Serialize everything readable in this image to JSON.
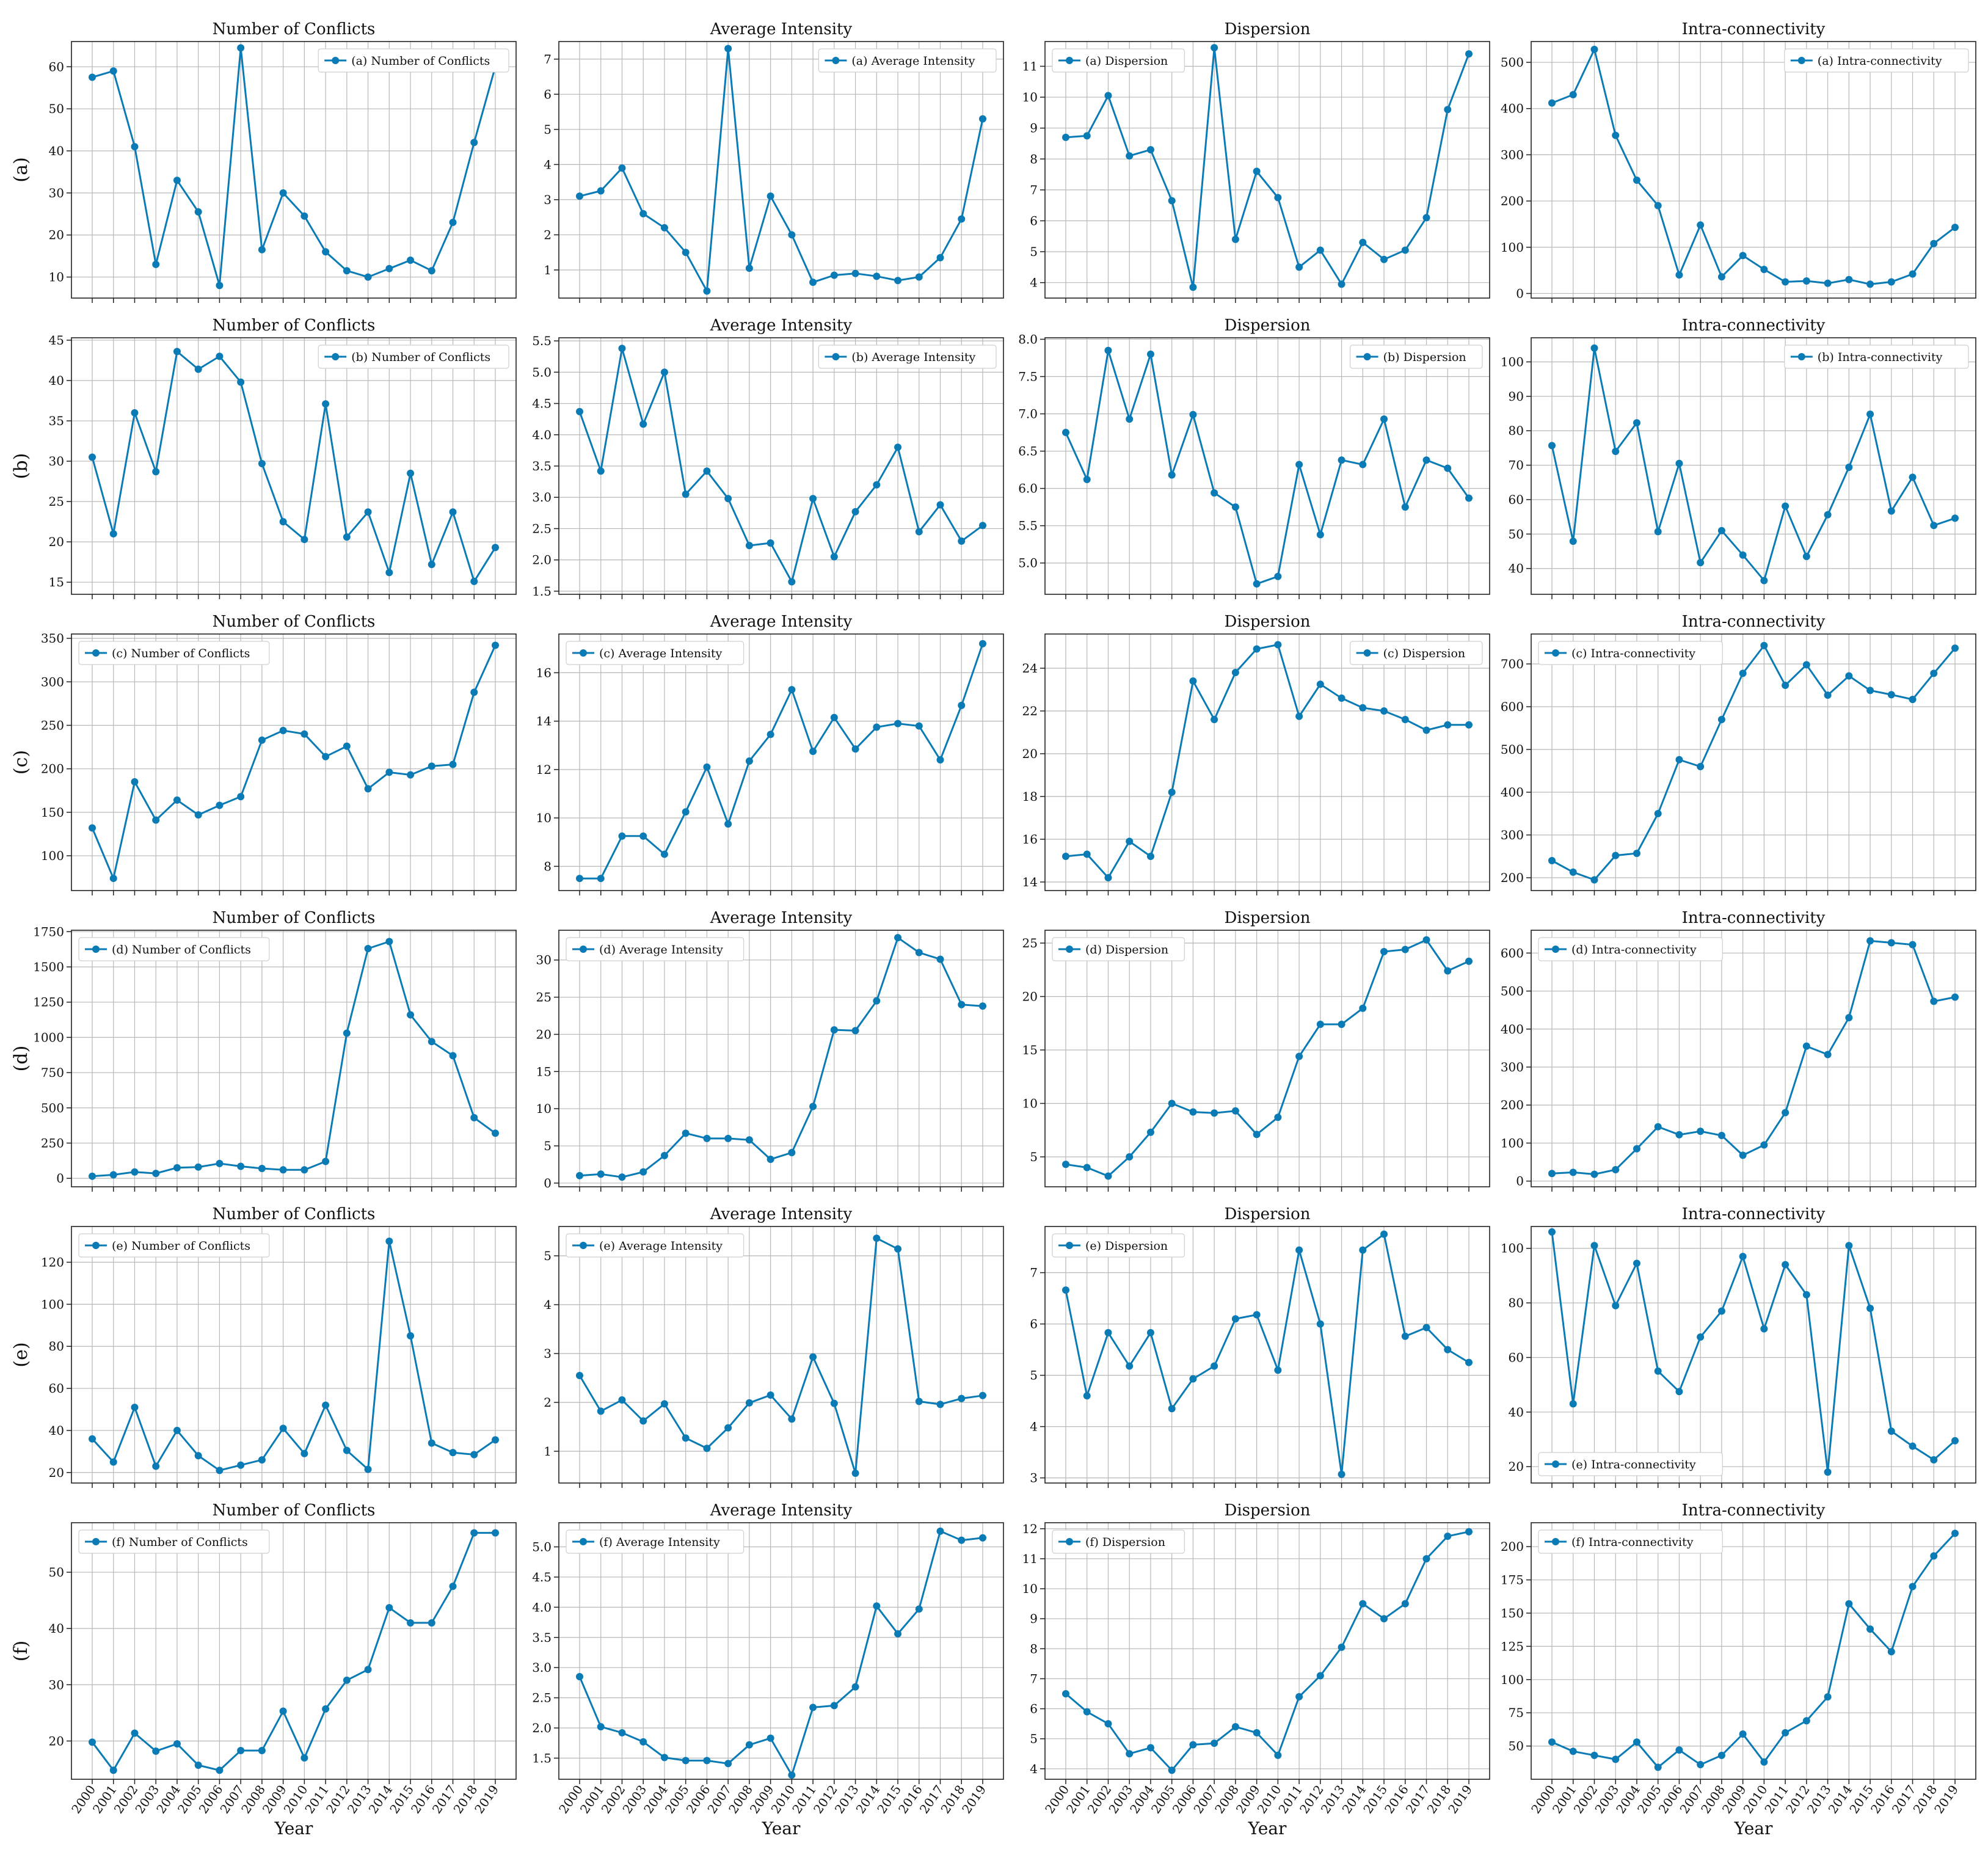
{
  "figure": {
    "line_color": "#0a7bb5",
    "x_label": "Year",
    "years": [
      "2000",
      "2001",
      "2002",
      "2003",
      "2004",
      "2005",
      "2006",
      "2007",
      "2008",
      "2009",
      "2010",
      "2011",
      "2012",
      "2013",
      "2014",
      "2015",
      "2016",
      "2017",
      "2018",
      "2019"
    ],
    "column_titles": [
      "Number of Conflicts",
      "Average Intensity",
      "Dispersion",
      "Intra-connectivity"
    ],
    "row_labels": [
      "(a)",
      "(b)",
      "(c)",
      "(d)",
      "(e)",
      "(f)"
    ]
  },
  "chart_data": [
    {
      "type": "line",
      "title": "Number of Conflicts",
      "row_label": "(a)",
      "legend_loc": "upper right",
      "ylim": [
        5,
        66
      ],
      "yticks": [
        10,
        20,
        30,
        40,
        50,
        60
      ],
      "series": [
        {
          "name": "(a) Number of Conflicts",
          "values": [
            57.5,
            59,
            41,
            13,
            33,
            25.5,
            8,
            64.5,
            16.5,
            30,
            24.5,
            16,
            11.5,
            10,
            12,
            14,
            11.5,
            23,
            42,
            60
          ]
        }
      ]
    },
    {
      "type": "line",
      "title": "Average Intensity",
      "row_label": "(a)",
      "legend_loc": "upper right",
      "ylim": [
        0.2,
        7.5
      ],
      "yticks": [
        1,
        2,
        3,
        4,
        5,
        6,
        7
      ],
      "series": [
        {
          "name": "(a) Average Intensity",
          "values": [
            3.1,
            3.25,
            3.9,
            2.6,
            2.2,
            1.5,
            0.4,
            7.3,
            1.05,
            3.1,
            2.0,
            0.65,
            0.85,
            0.9,
            0.82,
            0.7,
            0.8,
            1.35,
            2.45,
            5.3
          ]
        }
      ]
    },
    {
      "type": "line",
      "title": "Dispersion",
      "row_label": "(a)",
      "legend_loc": "upper left",
      "ylim": [
        3.5,
        11.8
      ],
      "yticks": [
        4,
        5,
        6,
        7,
        8,
        9,
        10,
        11
      ],
      "series": [
        {
          "name": "(a) Dispersion",
          "values": [
            8.7,
            8.75,
            10.05,
            8.1,
            8.3,
            6.65,
            3.85,
            11.6,
            5.4,
            7.6,
            6.75,
            4.5,
            5.05,
            3.95,
            5.3,
            4.75,
            5.05,
            6.1,
            9.6,
            11.4
          ]
        }
      ]
    },
    {
      "type": "line",
      "title": "Intra-connectivity",
      "row_label": "(a)",
      "legend_loc": "upper right",
      "ylim": [
        -10,
        545
      ],
      "yticks": [
        0,
        100,
        200,
        300,
        400,
        500
      ],
      "series": [
        {
          "name": "(a) Intra-connectivity",
          "values": [
            412,
            430,
            528,
            342,
            245,
            190,
            40,
            148,
            36,
            82,
            52,
            25,
            27,
            22,
            30,
            20,
            25,
            42,
            108,
            143
          ]
        }
      ]
    },
    {
      "type": "line",
      "title": "Number of Conflicts",
      "row_label": "(b)",
      "legend_loc": "upper right",
      "ylim": [
        13.5,
        45.3
      ],
      "yticks": [
        15,
        20,
        25,
        30,
        35,
        40,
        45
      ],
      "series": [
        {
          "name": "(b) Number of Conflicts",
          "values": [
            30.5,
            21,
            36,
            28.7,
            43.6,
            41.4,
            43,
            39.8,
            29.7,
            22.5,
            20.3,
            37.1,
            20.6,
            23.7,
            16.2,
            28.5,
            17.2,
            23.7,
            15.1,
            19.3
          ]
        }
      ]
    },
    {
      "type": "line",
      "title": "Average Intensity",
      "row_label": "(b)",
      "legend_loc": "upper right",
      "ylim": [
        1.45,
        5.55
      ],
      "yticks": [
        1.5,
        2.0,
        2.5,
        3.0,
        3.5,
        4.0,
        4.5,
        5.0,
        5.5
      ],
      "series": [
        {
          "name": "(b) Average Intensity",
          "values": [
            4.37,
            3.42,
            5.38,
            4.17,
            5.0,
            3.05,
            3.42,
            2.98,
            2.23,
            2.27,
            1.65,
            2.98,
            2.05,
            2.77,
            3.2,
            3.8,
            2.45,
            2.88,
            2.3,
            2.55
          ]
        }
      ]
    },
    {
      "type": "line",
      "title": "Dispersion",
      "row_label": "(b)",
      "legend_loc": "upper right",
      "ylim": [
        4.58,
        8.02
      ],
      "yticks": [
        5.0,
        5.5,
        6.0,
        6.5,
        7.0,
        7.5,
        8.0
      ],
      "series": [
        {
          "name": "(b) Dispersion",
          "values": [
            6.75,
            6.12,
            7.85,
            6.93,
            7.8,
            6.18,
            6.99,
            5.94,
            5.75,
            4.72,
            4.82,
            6.32,
            5.38,
            6.38,
            6.32,
            6.93,
            5.75,
            6.38,
            6.27,
            5.87
          ]
        }
      ]
    },
    {
      "type": "line",
      "title": "Intra-connectivity",
      "row_label": "(b)",
      "legend_loc": "upper right",
      "ylim": [
        32.5,
        107
      ],
      "yticks": [
        40,
        50,
        60,
        70,
        80,
        90,
        100
      ],
      "series": [
        {
          "name": "(b) Intra-connectivity",
          "values": [
            75.7,
            47.9,
            104,
            74,
            82.3,
            50.7,
            70.5,
            41.7,
            51,
            43.9,
            36.5,
            58.1,
            43.5,
            55.6,
            69.4,
            84.8,
            56.7,
            66.5,
            52.5,
            54.6
          ]
        }
      ]
    },
    {
      "type": "line",
      "title": "Number of Conflicts",
      "row_label": "(c)",
      "legend_loc": "upper left",
      "ylim": [
        60,
        355
      ],
      "yticks": [
        100,
        150,
        200,
        250,
        300,
        350
      ],
      "series": [
        {
          "name": "(c) Number of Conflicts",
          "values": [
            132,
            74,
            185,
            141,
            164,
            147,
            158,
            168,
            233,
            244,
            240,
            214,
            226,
            177,
            196,
            193,
            203,
            205,
            288,
            342
          ]
        }
      ]
    },
    {
      "type": "line",
      "title": "Average Intensity",
      "row_label": "(c)",
      "legend_loc": "upper left",
      "ylim": [
        7.0,
        17.6
      ],
      "yticks": [
        8,
        10,
        12,
        14,
        16
      ],
      "series": [
        {
          "name": "(c) Average Intensity",
          "values": [
            7.5,
            7.5,
            9.25,
            9.25,
            8.5,
            10.25,
            12.1,
            9.75,
            12.35,
            13.45,
            15.3,
            12.75,
            14.15,
            12.85,
            13.75,
            13.9,
            13.8,
            12.4,
            14.65,
            17.2
          ]
        }
      ]
    },
    {
      "type": "line",
      "title": "Dispersion",
      "row_label": "(c)",
      "legend_loc": "upper right",
      "ylim": [
        13.6,
        25.6
      ],
      "yticks": [
        14,
        16,
        18,
        20,
        22,
        24
      ],
      "series": [
        {
          "name": "(c) Dispersion",
          "values": [
            15.2,
            15.3,
            14.2,
            15.9,
            15.2,
            18.2,
            23.4,
            21.6,
            23.8,
            24.9,
            25.1,
            21.75,
            23.25,
            22.6,
            22.15,
            22.0,
            21.6,
            21.1,
            21.35,
            21.35
          ]
        }
      ]
    },
    {
      "type": "line",
      "title": "Intra-connectivity",
      "row_label": "(c)",
      "legend_loc": "upper left",
      "ylim": [
        170,
        770
      ],
      "yticks": [
        200,
        300,
        400,
        500,
        600,
        700
      ],
      "series": [
        {
          "name": "(c) Intra-connectivity",
          "values": [
            240,
            213,
            195,
            252,
            257,
            350,
            476,
            460,
            570,
            678,
            743,
            650,
            698,
            627,
            672,
            638,
            628,
            617,
            678,
            737
          ]
        }
      ]
    },
    {
      "type": "line",
      "title": "Number of Conflicts",
      "row_label": "(d)",
      "legend_loc": "upper left",
      "ylim": [
        -60,
        1760
      ],
      "yticks": [
        0,
        250,
        500,
        750,
        1000,
        1250,
        1500,
        1750
      ],
      "series": [
        {
          "name": "(d) Number of Conflicts",
          "values": [
            15,
            25,
            45,
            35,
            75,
            80,
            105,
            85,
            70,
            60,
            60,
            120,
            1030,
            1630,
            1680,
            1160,
            970,
            870,
            430,
            320
          ]
        }
      ]
    },
    {
      "type": "line",
      "title": "Average Intensity",
      "row_label": "(d)",
      "legend_loc": "upper left",
      "ylim": [
        -0.5,
        34
      ],
      "yticks": [
        0,
        5,
        10,
        15,
        20,
        25,
        30
      ],
      "series": [
        {
          "name": "(d) Average Intensity",
          "values": [
            1,
            1.2,
            0.8,
            1.5,
            3.7,
            6.7,
            6,
            6,
            5.8,
            3.2,
            4.1,
            10.3,
            20.6,
            20.5,
            24.5,
            33,
            31,
            30.1,
            24,
            23.8
          ]
        }
      ]
    },
    {
      "type": "line",
      "title": "Dispersion",
      "row_label": "(d)",
      "legend_loc": "upper left",
      "ylim": [
        2.2,
        26.2
      ],
      "yticks": [
        5,
        10,
        15,
        20,
        25
      ],
      "series": [
        {
          "name": "(d) Dispersion",
          "values": [
            4.3,
            4.0,
            3.2,
            5.0,
            7.3,
            10.0,
            9.2,
            9.1,
            9.3,
            7.1,
            8.7,
            14.4,
            17.4,
            17.4,
            18.9,
            24.2,
            24.4,
            25.3,
            22.4,
            23.3
          ]
        }
      ]
    },
    {
      "type": "line",
      "title": "Intra-connectivity",
      "row_label": "(d)",
      "legend_loc": "upper left",
      "ylim": [
        -15,
        660
      ],
      "yticks": [
        0,
        100,
        200,
        300,
        400,
        500,
        600
      ],
      "series": [
        {
          "name": "(d) Intra-connectivity",
          "values": [
            20,
            23,
            18,
            30,
            85,
            143,
            122,
            131,
            120,
            68,
            95,
            180,
            355,
            333,
            430,
            632,
            627,
            622,
            473,
            484
          ]
        }
      ]
    },
    {
      "type": "line",
      "title": "Number of Conflicts",
      "row_label": "(e)",
      "legend_loc": "upper left",
      "ylim": [
        15,
        137
      ],
      "yticks": [
        20,
        40,
        60,
        80,
        100,
        120
      ],
      "series": [
        {
          "name": "(e) Number of Conflicts",
          "values": [
            36,
            25,
            51,
            23,
            40,
            28,
            21,
            23.5,
            26,
            41,
            29,
            52,
            30.5,
            21.5,
            130,
            85,
            34,
            29.5,
            28.5,
            35.5
          ]
        }
      ]
    },
    {
      "type": "line",
      "title": "Average Intensity",
      "row_label": "(e)",
      "legend_loc": "upper left",
      "ylim": [
        0.35,
        5.6
      ],
      "yticks": [
        1,
        2,
        3,
        4,
        5
      ],
      "series": [
        {
          "name": "(e) Average Intensity",
          "values": [
            2.55,
            1.82,
            2.05,
            1.62,
            1.97,
            1.27,
            1.06,
            1.48,
            1.99,
            2.15,
            1.66,
            2.93,
            1.98,
            0.55,
            5.36,
            5.14,
            2.02,
            1.96,
            2.08,
            2.14
          ]
        }
      ]
    },
    {
      "type": "line",
      "title": "Dispersion",
      "row_label": "(e)",
      "legend_loc": "upper left",
      "ylim": [
        2.9,
        7.9
      ],
      "yticks": [
        3,
        4,
        5,
        6,
        7
      ],
      "series": [
        {
          "name": "(e) Dispersion",
          "values": [
            6.66,
            4.6,
            5.83,
            5.18,
            5.83,
            4.35,
            4.93,
            5.18,
            6.1,
            6.18,
            5.1,
            7.44,
            6.0,
            3.07,
            7.44,
            7.75,
            5.76,
            5.93,
            5.5,
            5.25
          ]
        }
      ]
    },
    {
      "type": "line",
      "title": "Intra-connectivity",
      "row_label": "(e)",
      "legend_loc": "lower left",
      "ylim": [
        14,
        108
      ],
      "yticks": [
        20,
        40,
        60,
        80,
        100
      ],
      "series": [
        {
          "name": "(e) Intra-connectivity",
          "values": [
            106,
            43,
            101,
            79,
            94.5,
            55,
            47.5,
            67.5,
            77,
            97,
            70.5,
            94,
            83,
            18,
            101,
            78,
            33,
            27.5,
            22.5,
            29.5
          ]
        }
      ]
    },
    {
      "type": "line",
      "title": "Number of Conflicts",
      "row_label": "(f)",
      "legend_loc": "upper left",
      "ylim": [
        13.2,
        58.8
      ],
      "yticks": [
        20,
        30,
        40,
        50
      ],
      "series": [
        {
          "name": "(f) Number of Conflicts",
          "values": [
            19.8,
            14.8,
            21.4,
            18.2,
            19.5,
            15.7,
            14.8,
            18.3,
            18.3,
            25.3,
            17,
            25.7,
            30.8,
            32.7,
            43.7,
            41,
            41,
            47.5,
            57,
            57
          ]
        }
      ]
    },
    {
      "type": "line",
      "title": "Average Intensity",
      "row_label": "(f)",
      "legend_loc": "upper left",
      "ylim": [
        1.15,
        5.4
      ],
      "yticks": [
        1.5,
        2.0,
        2.5,
        3.0,
        3.5,
        4.0,
        4.5,
        5.0
      ],
      "series": [
        {
          "name": "(f) Average Intensity",
          "values": [
            2.85,
            2.02,
            1.92,
            1.77,
            1.51,
            1.46,
            1.46,
            1.41,
            1.72,
            1.83,
            1.22,
            2.34,
            2.37,
            2.68,
            4.02,
            3.56,
            3.97,
            5.26,
            5.11,
            5.15
          ]
        }
      ]
    },
    {
      "type": "line",
      "title": "Dispersion",
      "row_label": "(f)",
      "legend_loc": "upper left",
      "ylim": [
        3.65,
        12.2
      ],
      "yticks": [
        4,
        5,
        6,
        7,
        8,
        9,
        10,
        11,
        12
      ],
      "series": [
        {
          "name": "(f) Dispersion",
          "values": [
            6.5,
            5.9,
            5.5,
            4.5,
            4.7,
            3.95,
            4.8,
            4.85,
            5.4,
            5.2,
            4.45,
            6.4,
            7.1,
            8.05,
            9.5,
            9.0,
            9.5,
            11.0,
            11.75,
            11.9
          ]
        }
      ]
    },
    {
      "type": "line",
      "title": "Intra-connectivity",
      "row_label": "(f)",
      "legend_loc": "upper left",
      "ylim": [
        25,
        218
      ],
      "yticks": [
        50,
        75,
        100,
        125,
        150,
        175,
        200
      ],
      "series": [
        {
          "name": "(f) Intra-connectivity",
          "values": [
            53,
            46,
            43,
            40,
            53,
            34,
            47,
            36,
            43,
            59,
            38,
            60,
            69,
            87,
            157,
            138,
            121,
            170,
            193,
            210
          ]
        }
      ]
    }
  ]
}
